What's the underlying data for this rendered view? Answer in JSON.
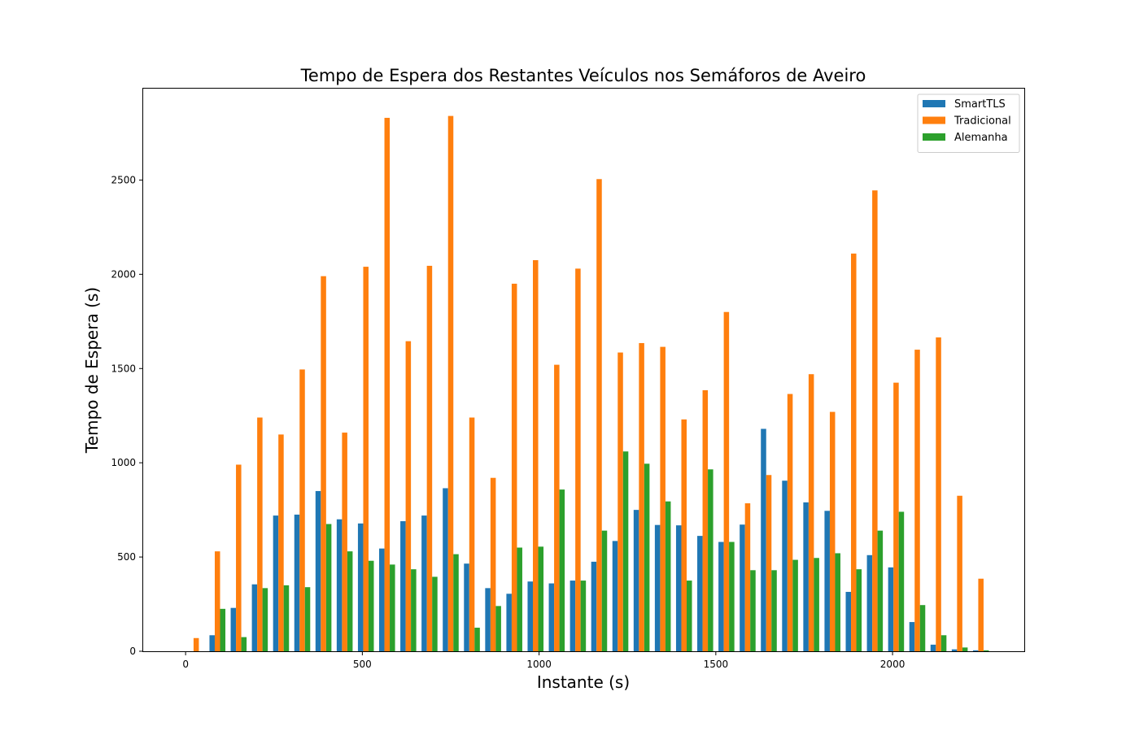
{
  "chart_data": {
    "type": "bar",
    "title": "Tempo de Espera dos Restantes Veículos nos Semáforos de Aveiro",
    "xlabel": "Instante (s)",
    "ylabel": "Tempo de Espera (s)",
    "xlim": [
      -120,
      2375
    ],
    "ylim": [
      0,
      2985
    ],
    "xticks": [
      0,
      500,
      1000,
      1500,
      2000
    ],
    "yticks": [
      0,
      500,
      1000,
      1500,
      2000,
      2500
    ],
    "grid": false,
    "legend_position": "top-right",
    "bar_group_spacing": 60,
    "x": [
      0,
      60,
      120,
      180,
      240,
      300,
      360,
      420,
      480,
      540,
      600,
      660,
      720,
      780,
      840,
      900,
      960,
      1020,
      1080,
      1140,
      1200,
      1260,
      1320,
      1380,
      1440,
      1500,
      1560,
      1620,
      1680,
      1740,
      1800,
      1860,
      1920,
      1980,
      2040,
      2100,
      2160,
      2220
    ],
    "series": [
      {
        "name": "SmartTLS",
        "color": "#1f77b4",
        "values": [
          0,
          85,
          230,
          355,
          720,
          725,
          850,
          700,
          678,
          545,
          690,
          720,
          865,
          465,
          335,
          305,
          370,
          360,
          375,
          475,
          585,
          750,
          670,
          668,
          612,
          580,
          672,
          1180,
          905,
          790,
          745,
          315,
          510,
          445,
          155,
          35,
          10,
          5
        ]
      },
      {
        "name": "Tradicional",
        "color": "#ff7f0e",
        "values": [
          70,
          530,
          990,
          1240,
          1150,
          1495,
          1990,
          1160,
          2040,
          2830,
          1645,
          2045,
          2840,
          1240,
          920,
          1950,
          2075,
          1520,
          2030,
          2505,
          1585,
          1635,
          1615,
          1230,
          1385,
          1800,
          785,
          935,
          1365,
          1470,
          1270,
          2110,
          2445,
          1425,
          1600,
          1665,
          825,
          385
        ]
      },
      {
        "name": "Alemanha",
        "color": "#2ca02c",
        "values": [
          0,
          225,
          75,
          335,
          350,
          340,
          675,
          530,
          480,
          460,
          435,
          395,
          515,
          125,
          240,
          550,
          555,
          858,
          375,
          640,
          1060,
          995,
          795,
          375,
          965,
          580,
          430,
          430,
          485,
          495,
          520,
          435,
          640,
          740,
          245,
          85,
          20,
          5
        ]
      }
    ]
  }
}
